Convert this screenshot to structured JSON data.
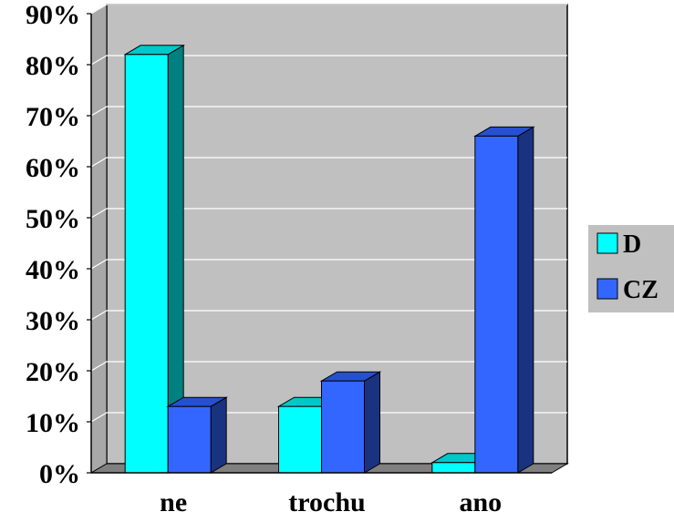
{
  "chart_data": {
    "type": "bar",
    "categories": [
      "ne",
      "trochu",
      "ano"
    ],
    "series": [
      {
        "name": "D",
        "values": [
          82,
          13,
          2
        ]
      },
      {
        "name": "CZ",
        "values": [
          13,
          18,
          66
        ]
      }
    ],
    "ylim": [
      0,
      90
    ],
    "yticks": [
      "0%",
      "10%",
      "20%",
      "30%",
      "40%",
      "50%",
      "60%",
      "70%",
      "80%",
      "90%"
    ],
    "grid": true,
    "legend_placement": "right",
    "colors": {
      "plot_background": "#c0c0c0",
      "floor": "#808080",
      "gridline": "#ffffff",
      "D_front": "#00ffff",
      "D_top": "#00c8c8",
      "D_side": "#008080",
      "CZ_front": "#3366ff",
      "CZ_top": "#2650d0",
      "CZ_side": "#1a3380",
      "legend_background": "#c0c0c0"
    }
  }
}
